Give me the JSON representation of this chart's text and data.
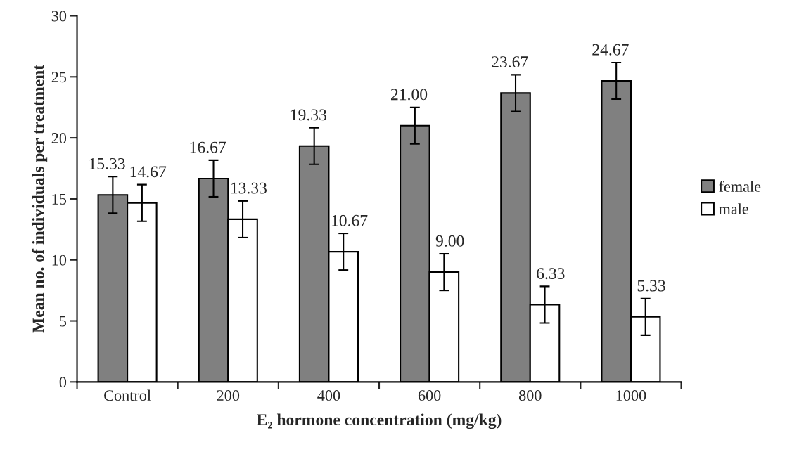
{
  "chart_data": {
    "type": "bar",
    "xlabel": "E₂ hormone concentration (mg/kg)",
    "ylabel": "Mean no. of individuals per treatment",
    "categories": [
      "Control",
      "200",
      "400",
      "600",
      "800",
      "1000"
    ],
    "series": [
      {
        "name": "female",
        "color": "#808080",
        "values": [
          15.33,
          16.67,
          19.33,
          21.0,
          23.67,
          24.67
        ],
        "errors": [
          1.5,
          1.5,
          1.5,
          1.5,
          1.5,
          1.5
        ],
        "value_labels": [
          "15.33",
          "16.67",
          "19.33",
          "21.00",
          "23.67",
          "24.67"
        ]
      },
      {
        "name": "male",
        "color": "#ffffff",
        "values": [
          14.67,
          13.33,
          10.67,
          9.0,
          6.33,
          5.33
        ],
        "errors": [
          1.5,
          1.5,
          1.5,
          1.5,
          1.5,
          1.5
        ],
        "value_labels": [
          "14.67",
          "13.33",
          "10.67",
          "9.00",
          "6.33",
          "5.33"
        ]
      }
    ],
    "ylim": [
      0,
      30
    ],
    "yticks": [
      0,
      5,
      10,
      15,
      20,
      25,
      30
    ],
    "grid": false,
    "legend": "right"
  }
}
